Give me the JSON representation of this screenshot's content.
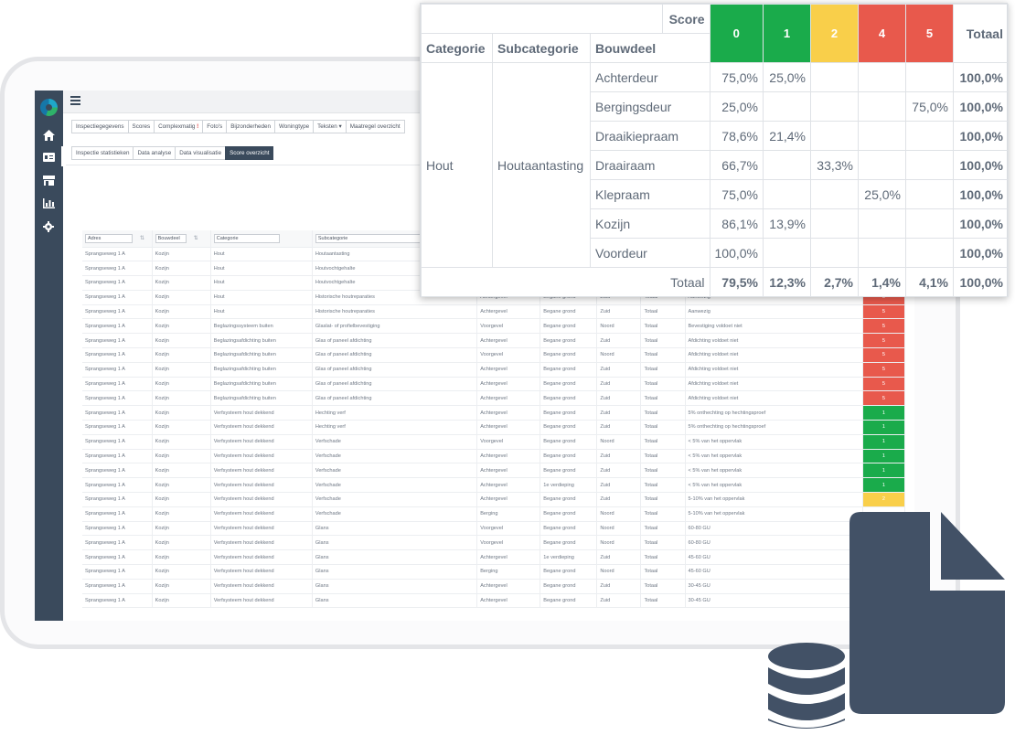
{
  "topbar": {
    "menu_icon": "hamburger-icon"
  },
  "sidebar": {
    "icons": [
      "home-icon",
      "id-card-icon",
      "store-icon",
      "chart-icon",
      "gear-icon"
    ]
  },
  "tabs_primary": [
    "Inspectiegegevens",
    "Scores",
    "Complexmatig",
    "Foto's",
    "Bijzonderheden",
    "Woningtype",
    "Teksten",
    "Maatregel overzicht"
  ],
  "tabs_secondary": [
    "Inspectie statistieken",
    "Data analyse",
    "Data visualisatie",
    "Score overzicht"
  ],
  "table": {
    "filters": {
      "adres": "Adres",
      "bouwdeel": "Bouwdeel",
      "categorie": "Categorie",
      "subcategorie": "Subcategorie"
    },
    "rows": [
      [
        "Sprangseweg 1 A",
        "Kozijn",
        "Hout",
        "Houtaantasting",
        "",
        "",
        "",
        "",
        "",
        ""
      ],
      [
        "Sprangseweg 1 A",
        "Kozijn",
        "Hout",
        "Houtvochtgehalte",
        "",
        "",
        "",
        "",
        "",
        ""
      ],
      [
        "Sprangseweg 1 A",
        "Kozijn",
        "Hout",
        "Houtvochtgehalte",
        "",
        "",
        "",
        "",
        "",
        ""
      ],
      [
        "Sprangseweg 1 A",
        "Kozijn",
        "Hout",
        "Historische houtreparaties",
        "Achtergevel",
        "Begane grond",
        "Zuid",
        "Totaal",
        "Aanwezig",
        "5"
      ],
      [
        "Sprangseweg 1 A",
        "Kozijn",
        "Hout",
        "Historische houtreparaties",
        "Achtergevel",
        "Begane grond",
        "Zuid",
        "Totaal",
        "Aanwezig",
        "5"
      ],
      [
        "Sprangseweg 1 A",
        "Kozijn",
        "Beglazingssysteem buiten",
        "Glaslat- of profielbevestiging",
        "Voorgevel",
        "Begane grond",
        "Noord",
        "Totaal",
        "Bevestiging voldoet niet",
        "5"
      ],
      [
        "Sprangseweg 1 A",
        "Kozijn",
        "Beglazingsafdichting buiten",
        "Glas of paneel afdichting",
        "Achtergevel",
        "Begane grond",
        "Zuid",
        "Totaal",
        "Afdichting voldoet niet",
        "5"
      ],
      [
        "Sprangseweg 1 A",
        "Kozijn",
        "Beglazingsafdichting buiten",
        "Glas of paneel afdichting",
        "Voorgevel",
        "Begane grond",
        "Noord",
        "Totaal",
        "Afdichting voldoet niet",
        "5"
      ],
      [
        "Sprangseweg 1 A",
        "Kozijn",
        "Beglazingsafdichting buiten",
        "Glas of paneel afdichting",
        "Achtergevel",
        "Begane grond",
        "Zuid",
        "Totaal",
        "Afdichting voldoet niet",
        "5"
      ],
      [
        "Sprangseweg 1 A",
        "Kozijn",
        "Beglazingsafdichting buiten",
        "Glas of paneel afdichting",
        "Achtergevel",
        "Begane grond",
        "Zuid",
        "Totaal",
        "Afdichting voldoet niet",
        "5"
      ],
      [
        "Sprangseweg 1 A",
        "Kozijn",
        "Beglazingsafdichting buiten",
        "Glas of paneel afdichting",
        "Achtergevel",
        "Begane grond",
        "Zuid",
        "Totaal",
        "Afdichting voldoet niet",
        "5"
      ],
      [
        "Sprangseweg 1 A",
        "Kozijn",
        "Verfsysteem hout dekkend",
        "Hechting verf",
        "Achtergevel",
        "Begane grond",
        "Zuid",
        "Totaal",
        "5% onthechting op hechtingsproef",
        "1"
      ],
      [
        "Sprangseweg 1 A",
        "Kozijn",
        "Verfsysteem hout dekkend",
        "Hechting verf",
        "Achtergevel",
        "Begane grond",
        "Zuid",
        "Totaal",
        "5% onthechting op hechtingsproef",
        "1"
      ],
      [
        "Sprangseweg 1 A",
        "Kozijn",
        "Verfsysteem hout dekkend",
        "Verfschade",
        "Voorgevel",
        "Begane grond",
        "Noord",
        "Totaal",
        "< 5% van het oppervlak",
        "1"
      ],
      [
        "Sprangseweg 1 A",
        "Kozijn",
        "Verfsysteem hout dekkend",
        "Verfschade",
        "Achtergevel",
        "Begane grond",
        "Zuid",
        "Totaal",
        "< 5% van het oppervlak",
        "1"
      ],
      [
        "Sprangseweg 1 A",
        "Kozijn",
        "Verfsysteem hout dekkend",
        "Verfschade",
        "Achtergevel",
        "Begane grond",
        "Zuid",
        "Totaal",
        "< 5% van het oppervlak",
        "1"
      ],
      [
        "Sprangseweg 1 A",
        "Kozijn",
        "Verfsysteem hout dekkend",
        "Verfschade",
        "Achtergevel",
        "1e verdieping",
        "Zuid",
        "Totaal",
        "< 5% van het oppervlak",
        "1"
      ],
      [
        "Sprangseweg 1 A",
        "Kozijn",
        "Verfsysteem hout dekkend",
        "Verfschade",
        "Achtergevel",
        "Begane grond",
        "Zuid",
        "Totaal",
        "5-10% van het oppervlak",
        "2"
      ],
      [
        "Sprangseweg 1 A",
        "Kozijn",
        "Verfsysteem hout dekkend",
        "Verfschade",
        "Berging",
        "Begane grond",
        "Noord",
        "Totaal",
        "5-10% van het oppervlak",
        ""
      ],
      [
        "Sprangseweg 1 A",
        "Kozijn",
        "Verfsysteem hout dekkend",
        "Glans",
        "Voorgevel",
        "Begane grond",
        "Noord",
        "Totaal",
        "60-80 GU",
        ""
      ],
      [
        "Sprangseweg 1 A",
        "Kozijn",
        "Verfsysteem hout dekkend",
        "Glans",
        "Voorgevel",
        "Begane grond",
        "Noord",
        "Totaal",
        "60-80 GU",
        ""
      ],
      [
        "Sprangseweg 1 A",
        "Kozijn",
        "Verfsysteem hout dekkend",
        "Glans",
        "Achtergevel",
        "1e verdieping",
        "Zuid",
        "Totaal",
        "45-60 GU",
        ""
      ],
      [
        "Sprangseweg 1 A",
        "Kozijn",
        "Verfsysteem hout dekkend",
        "Glans",
        "Berging",
        "Begane grond",
        "Noord",
        "Totaal",
        "45-60 GU",
        ""
      ],
      [
        "Sprangseweg 1 A",
        "Kozijn",
        "Verfsysteem hout dekkend",
        "Glans",
        "Achtergevel",
        "Begane grond",
        "Zuid",
        "Totaal",
        "30-45 GU",
        ""
      ],
      [
        "Sprangseweg 1 A",
        "Kozijn",
        "Verfsysteem hout dekkend",
        "Glans",
        "Achtergevel",
        "Begane grond",
        "Zuid",
        "Totaal",
        "30-45 GU",
        ""
      ]
    ]
  },
  "pivot": {
    "header_score": "Score",
    "header_total": "Totaal",
    "col_categorie": "Categorie",
    "col_subcategorie": "Subcategorie",
    "col_bouwdeel": "Bouwdeel",
    "scores": [
      {
        "label": "0",
        "color": "#1aab4b"
      },
      {
        "label": "1",
        "color": "#1aab4b"
      },
      {
        "label": "2",
        "color": "#f9cf4a"
      },
      {
        "label": "4",
        "color": "#e8594c"
      },
      {
        "label": "5",
        "color": "#e8594c"
      }
    ],
    "categorie": "Hout",
    "subcategorie": "Houtaantasting",
    "rows": [
      {
        "bouwdeel": "Achterdeur",
        "values": [
          "75,0%",
          "25,0%",
          "",
          "",
          ""
        ],
        "total": "100,0%"
      },
      {
        "bouwdeel": "Bergingsdeur",
        "values": [
          "25,0%",
          "",
          "",
          "",
          "75,0%"
        ],
        "total": "100,0%"
      },
      {
        "bouwdeel": "Draaikiepraam",
        "values": [
          "78,6%",
          "21,4%",
          "",
          "",
          ""
        ],
        "total": "100,0%"
      },
      {
        "bouwdeel": "Draairaam",
        "values": [
          "66,7%",
          "",
          "33,3%",
          "",
          ""
        ],
        "total": "100,0%"
      },
      {
        "bouwdeel": "Klepraam",
        "values": [
          "75,0%",
          "",
          "",
          "25,0%",
          ""
        ],
        "total": "100,0%"
      },
      {
        "bouwdeel": "Kozijn",
        "values": [
          "86,1%",
          "13,9%",
          "",
          "",
          ""
        ],
        "total": "100,0%"
      },
      {
        "bouwdeel": "Voordeur",
        "values": [
          "100,0%",
          "",
          "",
          "",
          ""
        ],
        "total": "100,0%"
      }
    ],
    "totals_label": "Totaal",
    "totals": [
      "79,5%",
      "12,3%",
      "2,7%",
      "1,4%",
      "4,1%"
    ],
    "grand_total": "100,0%"
  },
  "score_colors": {
    "1": "#1aab4b",
    "2": "#f9cf4a",
    "5": "#e8594c"
  },
  "decor": {
    "file_icon": "file-icon",
    "database_icon": "database-icon",
    "icon_color": "#425166"
  }
}
